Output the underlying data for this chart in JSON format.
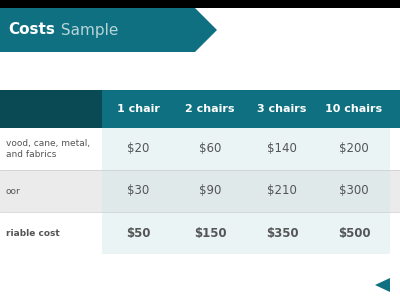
{
  "title_bold": "Costs",
  "title_light": " Sample",
  "header_color": "#0e7080",
  "dark_header_color": "#0a4a55",
  "bg_color": "#f2f2f2",
  "white": "#ffffff",
  "text_dark": "#555555",
  "text_header": "#ffffff",
  "col_headers": [
    "1 chair",
    "2 chairs",
    "3 chairs",
    "10 chairs"
  ],
  "row_labels_display": [
    "vood, cane, metal,\nand fabrics",
    "oor",
    "riable cost"
  ],
  "data": [
    [
      "$20",
      "$60",
      "$140",
      "$200"
    ],
    [
      "$30",
      "$90",
      "$210",
      "$300"
    ],
    [
      "$50",
      "$150",
      "$350",
      "$500"
    ]
  ],
  "row_bold": [
    false,
    false,
    true
  ],
  "row_colors": [
    "#ffffff",
    "#ebebeb",
    "#ffffff"
  ],
  "data_cell_colors": [
    "#eaf4f5",
    "#dfe9ea",
    "#eaf4f5"
  ],
  "black": "#000000",
  "logo_color": "#0e7080"
}
